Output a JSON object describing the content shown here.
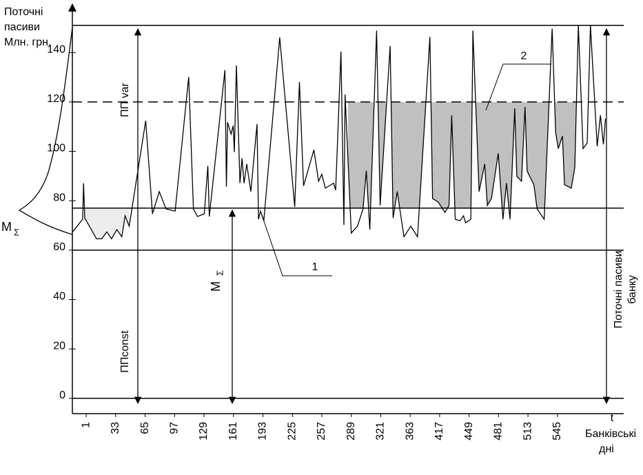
{
  "chart_data": {
    "type": "line",
    "y_axis_label": [
      "Поточні",
      "пасиви",
      "Млн. грн."
    ],
    "right_label": [
      "Поточні пасиви",
      "банку"
    ],
    "x_axis_label": "t",
    "x_axis_caption": [
      "Банківські",
      "дні"
    ],
    "ylim": [
      -6.2,
      159.6
    ],
    "yticks": [
      0,
      20,
      40,
      60,
      80,
      100,
      120,
      140
    ],
    "xlim": [
      -0.47,
      18.25
    ],
    "xticks": [
      1,
      33,
      65,
      97,
      129,
      161,
      193,
      225,
      257,
      289,
      321,
      363,
      417,
      449,
      481,
      513,
      545
    ],
    "series": [
      {
        "color": "#000000",
        "x": [
          -0.46,
          -0.12,
          -0.09,
          -0.05,
          0.35,
          0.53,
          0.7,
          0.86,
          1.04,
          1.21,
          1.32,
          1.46,
          2.02,
          2.25,
          2.48,
          2.71,
          3.02,
          3.48,
          3.64,
          3.78,
          4.01,
          4.13,
          4.18,
          4.71,
          4.76,
          4.8,
          4.92,
          4.99,
          5.03,
          5.1,
          5.22,
          5.29,
          5.36,
          5.45,
          5.59,
          5.8,
          5.85,
          5.92,
          6.03,
          6.57,
          7.08,
          7.24,
          7.38,
          7.73,
          7.89,
          8.0,
          8.12,
          8.4,
          8.47,
          8.65,
          8.75,
          8.79,
          9.0,
          9.21,
          9.4,
          9.51,
          9.63,
          9.86,
          9.98,
          10.32,
          10.42,
          10.56,
          10.79,
          11.02,
          11.25,
          11.67,
          11.76,
          11.95,
          12.18,
          12.32,
          12.41,
          12.53,
          12.69,
          12.81,
          12.88,
          13.06,
          13.13,
          13.34,
          13.53,
          13.62,
          13.76,
          13.99,
          14.15,
          14.27,
          14.39,
          14.55,
          14.62,
          14.78,
          14.9,
          14.97,
          15.08,
          15.2,
          15.31,
          15.55,
          15.82,
          15.94,
          16.03,
          16.17,
          16.24,
          16.47,
          16.59,
          16.71,
          16.87,
          17.01,
          17.12,
          17.35,
          17.46,
          17.56,
          17.63
        ],
        "values": [
          67.4,
          72.5,
          87.1,
          73.0,
          64.6,
          64.6,
          67.4,
          64.6,
          68.3,
          65.4,
          73.9,
          69.7,
          112.4,
          74.7,
          83.7,
          76.7,
          75.8,
          130.1,
          76.7,
          73.6,
          74.7,
          94.1,
          73.6,
          132.9,
          85.7,
          111.8,
          107.0,
          110.4,
          99.7,
          134.8,
          87.1,
          97.2,
          87.1,
          94.9,
          83.7,
          111.0,
          72.5,
          75.8,
          71.9,
          146.1,
          77.5,
          128.1,
          86.0,
          100.6,
          87.9,
          90.7,
          85.1,
          87.1,
          84.3,
          140.4,
          70.2,
          123.0,
          66.9,
          69.7,
          76.7,
          92.1,
          68.3,
          148.9,
          78.1,
          142.7,
          73.0,
          83.7,
          65.4,
          69.7,
          65.4,
          146.3,
          80.9,
          79.5,
          75.3,
          78.1,
          114.6,
          72.5,
          71.9,
          73.9,
          71.1,
          72.5,
          148.9,
          83.7,
          94.9,
          78.1,
          80.9,
          99.2,
          72.5,
          87.1,
          72.5,
          117.4,
          89.9,
          87.9,
          118.0,
          92.1,
          89.3,
          86.5,
          76.7,
          72.5,
          149.7,
          107.6,
          101.1,
          106.2,
          86.5,
          85.1,
          93.5,
          151.1,
          101.1,
          103.4,
          151.1,
          102.0,
          114.6,
          102.8,
          113.2
        ]
      }
    ],
    "hlines": [
      {
        "value": 151,
        "style": "solid"
      },
      {
        "value": 120,
        "style": "dashed"
      },
      {
        "value": 77,
        "style": "solid"
      },
      {
        "value": 60,
        "style": "solid"
      },
      {
        "value": 0,
        "style": "solid"
      }
    ],
    "annotations": {
      "pp_var": "ПП var",
      "pp_const": "ППconst",
      "m_sigma": "M",
      "sigma": "Σ",
      "label_1": "1",
      "label_2": "2"
    }
  }
}
